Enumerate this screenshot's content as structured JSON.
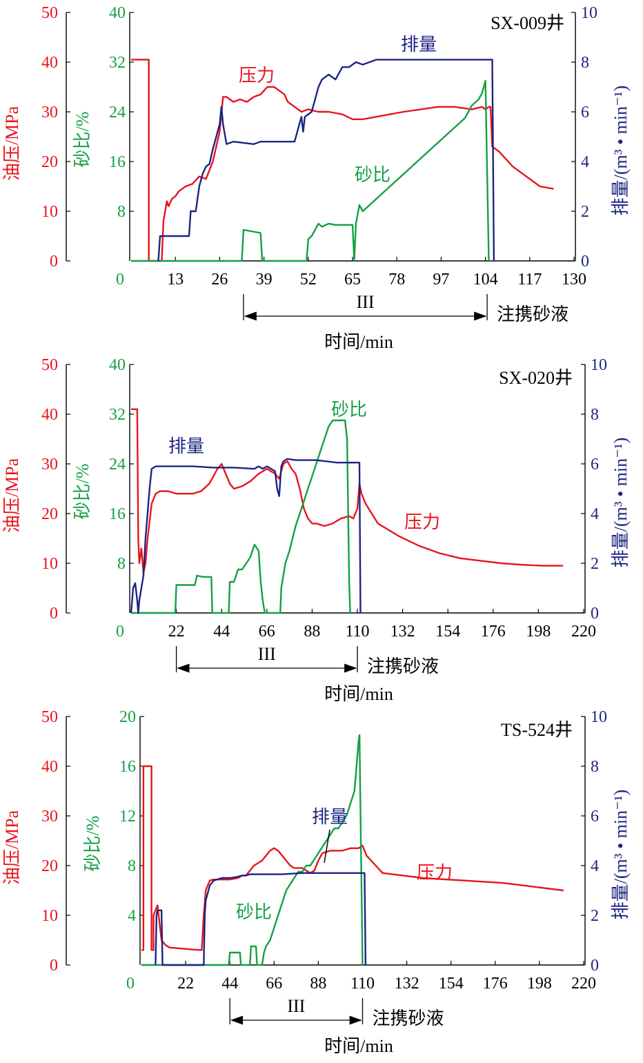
{
  "colors": {
    "pressure": "#e8141c",
    "sand": "#13a043",
    "rate": "#1c2483",
    "axis": "#000000"
  },
  "common": {
    "pressure_axis_label": "油压/MPa",
    "sand_axis_label": "砂比/%",
    "rate_axis_label": "排量/(m³ • min⁻¹)",
    "x_axis_label": "时间/min",
    "stage_label": "III",
    "carry_label": "注携砂液"
  },
  "chart_data": [
    {
      "type": "line",
      "well": "SX-009井",
      "x_ticks": [
        "0",
        "13",
        "26",
        "39",
        "52",
        "65",
        "78",
        "97",
        "104",
        "117",
        "130"
      ],
      "xlim": [
        0,
        130
      ],
      "pressure_ticks": [
        "50",
        "40",
        "30",
        "20",
        "10",
        "0"
      ],
      "sand_ticks": [
        "40",
        "32",
        "24",
        "16",
        "8"
      ],
      "rate_ticks": [
        "10",
        "8",
        "6",
        "4",
        "2",
        "0"
      ],
      "ylim": {
        "pressure": [
          0,
          50
        ],
        "sand": [
          0,
          40
        ],
        "rate": [
          0,
          10
        ]
      },
      "stage_range": [
        33,
        104.5
      ],
      "series": [
        {
          "name": "压力",
          "axis": "pressure",
          "x": [
            0,
            2,
            5,
            5.2,
            5.2,
            9,
            9.5,
            10.5,
            11,
            12,
            13,
            14,
            16,
            18,
            20,
            22,
            24,
            26,
            27,
            28,
            30,
            32,
            34,
            36,
            38,
            40,
            42,
            44,
            45,
            46,
            48,
            50,
            52,
            55,
            58,
            62,
            65,
            68,
            72,
            76,
            80,
            85,
            90,
            95,
            100,
            103,
            104,
            105,
            105.5,
            106,
            108,
            112,
            116,
            120,
            124
          ],
          "y": [
            40.5,
            40.5,
            40.5,
            40.5,
            0,
            0,
            8,
            12,
            11,
            12.5,
            13,
            14,
            15,
            15.5,
            17,
            16.5,
            20,
            26,
            33,
            33,
            32,
            32.5,
            32,
            33,
            33.5,
            35,
            35,
            34,
            33.5,
            32,
            31,
            30,
            30.5,
            30,
            30,
            29.5,
            28.5,
            28.5,
            29,
            29.5,
            30,
            30.5,
            31,
            31,
            30.5,
            31,
            30.5,
            31,
            31,
            23,
            22,
            19,
            17,
            15,
            14.5
          ]
        },
        {
          "name": "砂比",
          "axis": "sand",
          "x": [
            0,
            32.5,
            33,
            38,
            38.5,
            51.5,
            52,
            53,
            54,
            55,
            56,
            58,
            60,
            62,
            65,
            65.5,
            66,
            67,
            68,
            70,
            72,
            74,
            76,
            78,
            80,
            82,
            84,
            86,
            88,
            90,
            92,
            94,
            96,
            98,
            100,
            102,
            103,
            104,
            105
          ],
          "y": [
            0,
            0,
            5,
            4.5,
            0,
            0,
            3.5,
            4,
            5,
            6,
            5.5,
            6,
            5.8,
            5.8,
            5.8,
            0,
            6,
            9,
            8,
            9,
            10,
            11,
            12,
            13,
            14,
            15,
            16,
            17,
            18,
            19,
            20,
            21,
            22,
            23,
            25,
            26,
            27,
            29,
            0
          ]
        },
        {
          "name": "排量",
          "axis": "rate",
          "x": [
            8,
            8.5,
            9,
            17,
            17.5,
            19,
            20,
            21,
            22,
            23,
            24,
            25,
            26,
            26.5,
            27,
            28,
            30,
            36,
            38,
            42,
            48,
            50,
            50.5,
            51,
            53,
            54,
            55,
            56,
            58,
            60,
            62,
            64,
            66,
            68,
            70,
            72,
            75,
            80,
            85,
            90,
            95,
            100,
            104,
            105,
            106,
            106.5
          ],
          "y": [
            0,
            1,
            1,
            1,
            2,
            2,
            3,
            3.5,
            3.8,
            3.9,
            4.5,
            5,
            5.5,
            6.2,
            5.5,
            4.7,
            4.8,
            4.7,
            4.8,
            4.8,
            4.8,
            5.8,
            5.2,
            5.8,
            6,
            6.5,
            7,
            7.3,
            7.5,
            7.3,
            7.8,
            7.8,
            8,
            7.9,
            8,
            8.1,
            8.1,
            8.1,
            8.1,
            8.1,
            8.1,
            8.1,
            8.1,
            8.1,
            8.1,
            0
          ]
        }
      ]
    },
    {
      "type": "line",
      "well": "SX-020井",
      "x_ticks": [
        "0",
        "22",
        "44",
        "66",
        "88",
        "110",
        "132",
        "154",
        "176",
        "198",
        "220"
      ],
      "xlim": [
        0,
        220
      ],
      "pressure_ticks": [
        "50",
        "40",
        "30",
        "20",
        "10",
        "0"
      ],
      "sand_ticks": [
        "40",
        "32",
        "24",
        "16",
        "8"
      ],
      "rate_ticks": [
        "10",
        "8",
        "6",
        "4",
        "2",
        "0"
      ],
      "ylim": {
        "pressure": [
          0,
          50
        ],
        "sand": [
          0,
          40
        ],
        "rate": [
          0,
          10
        ]
      },
      "stage_range": [
        22,
        110
      ],
      "series": [
        {
          "name": "压力",
          "axis": "pressure",
          "x": [
            0,
            3,
            3.5,
            4,
            5,
            6,
            7,
            8,
            10,
            12,
            14,
            18,
            22,
            26,
            30,
            34,
            38,
            42,
            44,
            46,
            48,
            50,
            54,
            58,
            62,
            66,
            70,
            72,
            74,
            76,
            78,
            80,
            82,
            84,
            86,
            88,
            90,
            94,
            98,
            102,
            106,
            108,
            110,
            111,
            112,
            114,
            120,
            130,
            140,
            150,
            160,
            170,
            180,
            190,
            200,
            210
          ],
          "y": [
            41,
            41,
            15,
            10,
            13,
            8,
            10,
            15,
            22,
            24,
            24.5,
            24.5,
            24,
            24,
            24,
            24.5,
            26,
            29,
            30,
            28,
            26,
            25,
            25.5,
            26.5,
            28,
            29,
            28,
            27,
            30,
            30.5,
            29,
            28,
            25,
            21,
            19,
            18,
            18,
            17.5,
            18,
            19,
            19.5,
            19,
            21,
            26,
            24,
            22,
            18,
            15.5,
            13.5,
            12,
            11,
            10.5,
            10,
            9.7,
            9.5,
            9.5
          ]
        },
        {
          "name": "砂比",
          "axis": "sand",
          "x": [
            0,
            21.5,
            22,
            25,
            28,
            31,
            32,
            35,
            38,
            39,
            39.5,
            47.5,
            48,
            50,
            52,
            54,
            56,
            58,
            60,
            62,
            63,
            64,
            65,
            72.5,
            73,
            75,
            77,
            80,
            82,
            84,
            86,
            88,
            90,
            92,
            94,
            96,
            98,
            100,
            102,
            104,
            105,
            106,
            106.5
          ],
          "y": [
            0,
            0,
            4.5,
            4.5,
            4.5,
            4.5,
            6,
            5.8,
            5.8,
            5.8,
            0,
            0,
            5,
            5,
            7,
            7,
            8,
            9,
            11,
            10,
            5,
            2,
            0,
            0,
            4,
            8,
            10,
            14,
            16,
            18,
            20,
            22,
            24,
            26,
            28,
            30,
            31,
            31,
            31,
            31,
            28,
            5,
            0
          ]
        },
        {
          "name": "排量",
          "axis": "rate",
          "x": [
            0,
            1,
            2,
            3,
            3.5,
            4,
            5,
            6,
            7,
            8,
            9,
            10,
            12,
            20,
            30,
            40,
            50,
            60,
            62,
            64,
            66,
            68,
            70,
            71,
            72,
            73,
            74,
            76,
            80,
            90,
            100,
            108,
            110,
            111,
            111.5
          ],
          "y": [
            0,
            1,
            1.2,
            0.5,
            0,
            0.5,
            1,
            1.5,
            3,
            4,
            5,
            5.8,
            5.9,
            5.9,
            5.9,
            5.85,
            5.85,
            5.8,
            5.9,
            5.8,
            5.9,
            5.8,
            5.7,
            5,
            4.7,
            5.9,
            6.1,
            6.2,
            6.15,
            6.15,
            6.05,
            6.05,
            6.05,
            6.05,
            0
          ]
        }
      ]
    },
    {
      "type": "line",
      "well": "TS-524井",
      "x_ticks": [
        "0",
        "22",
        "44",
        "66",
        "88",
        "110",
        "132",
        "154",
        "176",
        "198",
        "220"
      ],
      "xlim": [
        0,
        220
      ],
      "pressure_ticks": [
        "50",
        "40",
        "30",
        "20",
        "10",
        "0"
      ],
      "sand_ticks": [
        "20",
        "16",
        "12",
        "8",
        "4"
      ],
      "rate_ticks": [
        "10",
        "8",
        "6",
        "4",
        "2",
        "0"
      ],
      "ylim": {
        "pressure": [
          0,
          50
        ],
        "sand": [
          0,
          20
        ],
        "rate": [
          0,
          10
        ]
      },
      "stage_range": [
        44,
        110
      ],
      "series": [
        {
          "name": "压力",
          "axis": "pressure",
          "x": [
            0,
            1,
            1,
            5,
            5,
            6,
            6,
            7,
            8,
            10,
            11,
            12,
            14,
            20,
            26,
            30,
            31,
            32,
            34,
            36,
            40,
            44,
            48,
            50,
            52,
            54,
            56,
            58,
            60,
            62,
            64,
            66,
            68,
            70,
            72,
            74,
            76,
            78,
            80,
            82,
            84,
            86,
            88,
            90,
            94,
            98,
            100,
            104,
            106,
            108,
            110,
            112,
            120,
            140,
            160,
            180,
            200,
            210
          ],
          "y": [
            3,
            3,
            40,
            40,
            3,
            3,
            10,
            11,
            12,
            5,
            4.5,
            4,
            3.5,
            3.3,
            3.1,
            3,
            10,
            15,
            17,
            17.2,
            17.2,
            17.2,
            17.5,
            18,
            18,
            19,
            20,
            20.5,
            21,
            22,
            23,
            23.5,
            23,
            22,
            21,
            20,
            19.5,
            19.5,
            19.5,
            19,
            18.5,
            19,
            21,
            22.5,
            23,
            23,
            23,
            23.5,
            23.5,
            23.5,
            24,
            22,
            18.5,
            17.5,
            17,
            16.5,
            15.5,
            15
          ]
        },
        {
          "name": "砂比",
          "axis": "sand",
          "x": [
            0,
            43.5,
            44,
            46,
            48,
            49,
            49.5,
            54,
            54.5,
            56,
            57,
            57.5,
            60,
            61,
            62,
            64,
            66,
            68,
            70,
            72,
            74,
            76,
            78,
            80,
            82,
            84,
            86,
            88,
            90,
            92,
            94,
            96,
            98,
            100,
            102,
            104,
            106,
            107,
            108,
            108.5,
            109,
            110
          ],
          "y": [
            0,
            0,
            1,
            1,
            1,
            1,
            0,
            0,
            1.5,
            1.5,
            1.5,
            0,
            0,
            1,
            1.5,
            2,
            3,
            4,
            5,
            6,
            6.5,
            7,
            7.5,
            7.5,
            8,
            8,
            8.5,
            9,
            9.5,
            10,
            10.5,
            11,
            11,
            11.5,
            12,
            13,
            14,
            16,
            18,
            18.5,
            12,
            0
          ]
        },
        {
          "name": "排量",
          "axis": "rate",
          "x": [
            7,
            7.5,
            8,
            9,
            10,
            10.5,
            11,
            31,
            31.5,
            32,
            34,
            36,
            40,
            44,
            48,
            50,
            52,
            54,
            56,
            60,
            70,
            80,
            90,
            100,
            110,
            111,
            111.5
          ],
          "y": [
            0,
            2,
            2.2,
            2.2,
            2.2,
            0,
            0,
            0,
            2,
            2.6,
            3.2,
            3.4,
            3.5,
            3.5,
            3.55,
            3.6,
            3.6,
            3.65,
            3.65,
            3.65,
            3.65,
            3.7,
            3.7,
            3.7,
            3.7,
            3.7,
            0
          ]
        }
      ],
      "labels": {
        "rate": "排量",
        "pressure": "压力",
        "sand": "砂比"
      }
    }
  ],
  "annotations": [
    {
      "pressure": "压力",
      "rate": "排量",
      "sand": "砂比"
    },
    {
      "pressure": "压力",
      "rate": "排量",
      "sand": "砂比"
    },
    {
      "pressure": "压力",
      "rate": "排量",
      "sand": "砂比"
    }
  ]
}
